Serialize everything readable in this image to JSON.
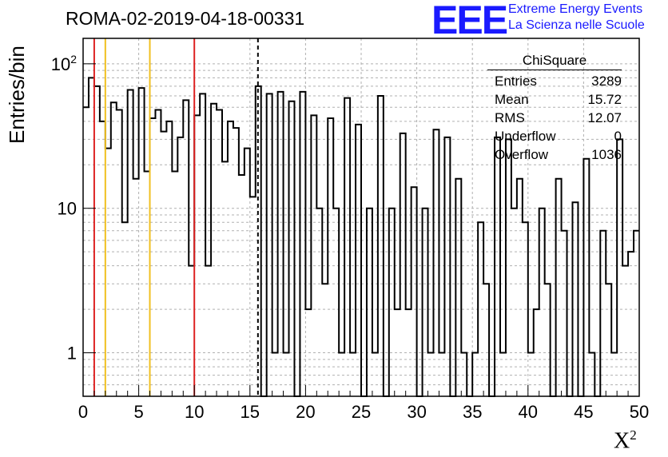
{
  "title": "ROMA-02-2019-04-18-00331",
  "logo": {
    "text": "EEE",
    "line1": "Extreme Energy Events",
    "line2": "La Scienza nelle Scuole",
    "color": "#1a1aff"
  },
  "stats": {
    "name": "ChiSquare",
    "rows": [
      {
        "label": "Entries",
        "value": "3289"
      },
      {
        "label": "Mean",
        "value": "15.72"
      },
      {
        "label": "RMS",
        "value": "12.07"
      },
      {
        "label": "Underflow",
        "value": "0"
      },
      {
        "label": "Overflow",
        "value": "1036"
      }
    ]
  },
  "chart_data": {
    "type": "histogram",
    "xlabel_base": "X",
    "xlabel_sup": "2",
    "ylabel": "Entries/bin",
    "xlim": [
      0,
      50
    ],
    "ylim": [
      0.5,
      150
    ],
    "yscale": "log",
    "bin_width": 0.5,
    "xticks": [
      "0",
      "5",
      "10",
      "15",
      "20",
      "25",
      "30",
      "35",
      "40",
      "45",
      "50"
    ],
    "yticks": [
      {
        "value": 1,
        "label": "1"
      },
      {
        "value": 10,
        "label": "10"
      },
      {
        "value": 100,
        "label": "10^2"
      }
    ],
    "grid": true,
    "values": [
      50,
      80,
      70,
      40,
      26,
      54,
      48,
      8,
      66,
      16,
      68,
      18,
      42,
      48,
      34,
      40,
      18,
      31,
      56,
      4,
      44,
      62,
      4,
      53,
      48,
      21,
      40,
      36,
      17,
      26,
      12,
      70,
      0.5,
      62,
      1,
      64,
      1,
      55,
      0.5,
      64,
      2,
      44,
      10,
      3,
      42,
      10,
      1,
      58,
      1,
      38,
      0.5,
      10,
      1,
      60,
      0.5,
      10,
      2,
      33,
      2,
      14,
      0.5,
      10,
      1,
      35,
      1,
      31,
      0.5,
      16,
      1,
      0.5,
      1,
      8,
      3,
      0.5,
      31,
      1,
      30,
      10,
      16,
      8,
      1,
      2,
      10,
      3,
      0.5,
      16,
      7,
      0.5,
      11,
      0.5,
      22,
      1,
      0.5,
      7,
      3,
      1,
      30,
      4,
      5,
      7
    ],
    "vlines": [
      {
        "x": 1,
        "color": "#dd2222",
        "style": "solid"
      },
      {
        "x": 2,
        "color": "#f0c020",
        "style": "solid"
      },
      {
        "x": 6,
        "color": "#f0c020",
        "style": "solid"
      },
      {
        "x": 10,
        "color": "#dd2222",
        "style": "solid"
      },
      {
        "x": 15.72,
        "color": "#000000",
        "style": "dashed"
      }
    ]
  }
}
